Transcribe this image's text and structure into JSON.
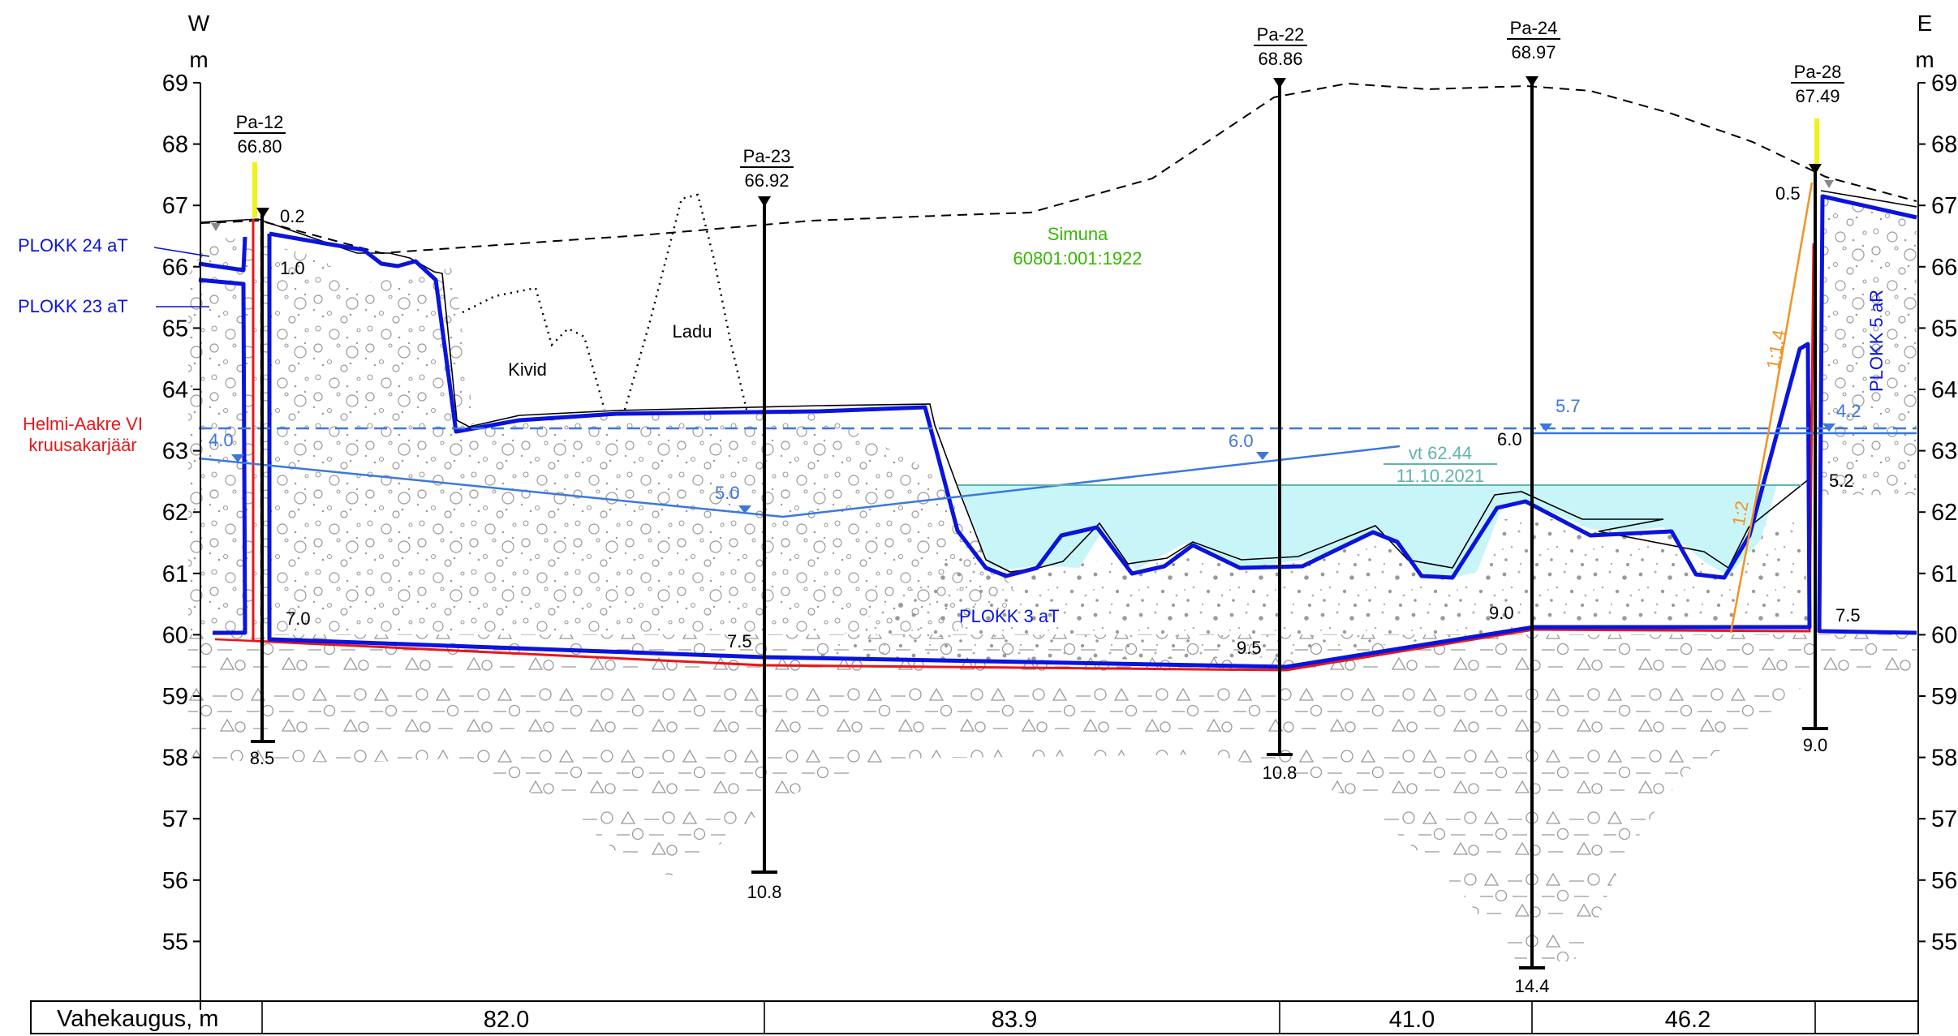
{
  "header": {
    "west_label": "W",
    "east_label": "E",
    "unit_left": "m",
    "unit_right": "m"
  },
  "axis": {
    "ticks": [
      "69",
      "68",
      "67",
      "66",
      "65",
      "64",
      "63",
      "62",
      "61",
      "60",
      "59",
      "58",
      "57",
      "56",
      "55"
    ]
  },
  "boreholes": [
    {
      "name": "Pa-12",
      "elevation": "66.80",
      "top_depth": "0.2",
      "mid_depth": "1.0",
      "bottom_depth": "8.5",
      "layer_depth": "7.0",
      "water_depth": "4.0"
    },
    {
      "name": "Pa-23",
      "elevation": "66.92",
      "bottom_depth": "10.8",
      "layer_depth": "7.5",
      "water_depth": "5.0"
    },
    {
      "name": "Pa-22",
      "elevation": "68.86",
      "bottom_depth": "10.8",
      "layer_depth": "9.5",
      "water_depth": "6.0"
    },
    {
      "name": "Pa-24",
      "elevation": "68.97",
      "bottom_depth": "14.4",
      "layer_depth": "9.0",
      "water_depth": "6.0",
      "water_depth_2": "5.7"
    },
    {
      "name": "Pa-28",
      "elevation": "67.49",
      "top_depth": "0.5",
      "mid_depth": "5.2",
      "bottom_depth": "9.0",
      "layer_depth": "7.5",
      "water_depth": "4.2"
    }
  ],
  "labels": {
    "plokk24": "PLOKK 24 aT",
    "plokk23": "PLOKK 23 aT",
    "plokk3": "PLOKK 3 aT",
    "plokk5": "PLOKK 5 aR",
    "helmi_line1": "Helmi-Aakre VI",
    "helmi_line2": "kruusakarjäär",
    "simuna_line1": "Simuna",
    "simuna_line2": "60801:001:1922",
    "kivid": "Kivid",
    "ladu": "Ladu",
    "water_level": "vt 62.44",
    "water_date": "11.10.2021",
    "slope_1": "1:1.4",
    "slope_2": "1:2"
  },
  "distance_table": {
    "label": "Vahekaugus, m",
    "values": [
      "82.0",
      "83.9",
      "41.0",
      "46.2"
    ]
  },
  "colors": {
    "blue": "#0a14dc",
    "red": "#e8161a",
    "water": "#c8f5f8",
    "groundwater": "#3c78dc",
    "green": "#36b800",
    "teal": "#62b3ad",
    "orange": "#f39320",
    "yellow": "#f2f21a"
  }
}
